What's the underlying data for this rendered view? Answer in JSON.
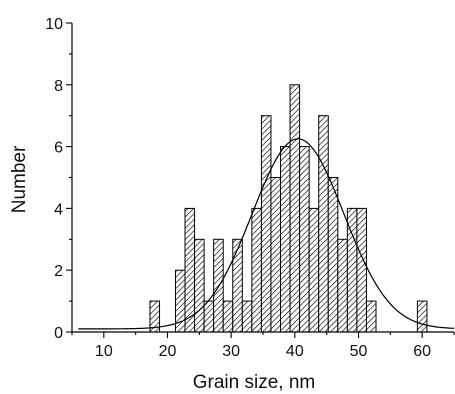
{
  "chart_data": {
    "type": "bar",
    "xlabel": "Grain size, nm",
    "ylabel": "Number",
    "xlim": [
      5,
      65
    ],
    "ylim": [
      0,
      10
    ],
    "x_ticks": [
      10,
      20,
      30,
      40,
      50,
      60
    ],
    "y_ticks": [
      0,
      2,
      4,
      6,
      8,
      10
    ],
    "bin_width": 1.5,
    "bars": [
      {
        "x": 18,
        "value": 1
      },
      {
        "x": 22,
        "value": 2
      },
      {
        "x": 23.5,
        "value": 4
      },
      {
        "x": 25,
        "value": 3
      },
      {
        "x": 26.5,
        "value": 1
      },
      {
        "x": 28,
        "value": 3
      },
      {
        "x": 29.5,
        "value": 1
      },
      {
        "x": 31,
        "value": 3
      },
      {
        "x": 32.5,
        "value": 1
      },
      {
        "x": 34,
        "value": 4
      },
      {
        "x": 35.5,
        "value": 7
      },
      {
        "x": 37,
        "value": 5
      },
      {
        "x": 38.5,
        "value": 6
      },
      {
        "x": 40,
        "value": 8
      },
      {
        "x": 41.5,
        "value": 6
      },
      {
        "x": 43,
        "value": 4
      },
      {
        "x": 44.5,
        "value": 7
      },
      {
        "x": 46,
        "value": 5
      },
      {
        "x": 47.5,
        "value": 3
      },
      {
        "x": 49,
        "value": 4
      },
      {
        "x": 50.5,
        "value": 4
      },
      {
        "x": 52,
        "value": 1
      },
      {
        "x": 60,
        "value": 1
      }
    ],
    "fit_curve": {
      "type": "gaussian",
      "center": 40.5,
      "amplitude": 6.15,
      "sigma": 7.2,
      "baseline": 0.1
    },
    "grid": false,
    "legend": "none"
  }
}
